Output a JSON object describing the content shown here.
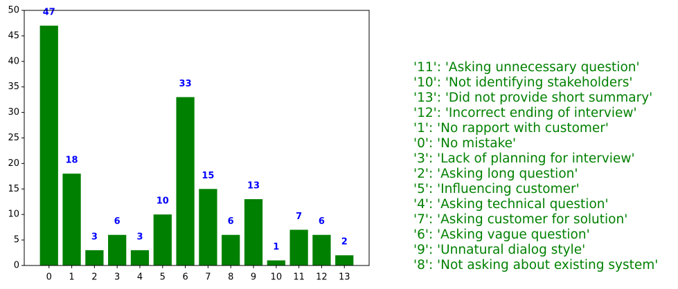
{
  "chart_data": {
    "type": "bar",
    "categories": [
      "0",
      "1",
      "2",
      "3",
      "4",
      "5",
      "6",
      "7",
      "8",
      "9",
      "10",
      "11",
      "12",
      "13"
    ],
    "values": [
      47,
      18,
      3,
      6,
      3,
      10,
      33,
      15,
      6,
      13,
      1,
      7,
      6,
      2
    ],
    "color": "#008000",
    "value_label_color": "#0000ff",
    "ylim": [
      0,
      50
    ],
    "yticks": [
      0,
      5,
      10,
      15,
      20,
      25,
      30,
      35,
      40,
      45,
      50
    ],
    "annotation_color": "#008000",
    "annotation_lines": [
      "'11': 'Asking unnecessary question'",
      "'10': 'Not identifying stakeholders'",
      "'13': 'Did not provide short summary'",
      "'12': 'Incorrect ending of interview'",
      "'1': 'No rapport with customer'",
      "'0': 'No mistake'",
      "'3': 'Lack of planning for interview'",
      "'2': 'Asking long question'",
      "'5': 'Influencing customer'",
      "'4': 'Asking technical question'",
      "'7': 'Asking customer for solution'",
      "'6': 'Asking vague question'",
      "'9': 'Unnatural dialog style'",
      "'8': 'Not asking about existing system'"
    ]
  }
}
